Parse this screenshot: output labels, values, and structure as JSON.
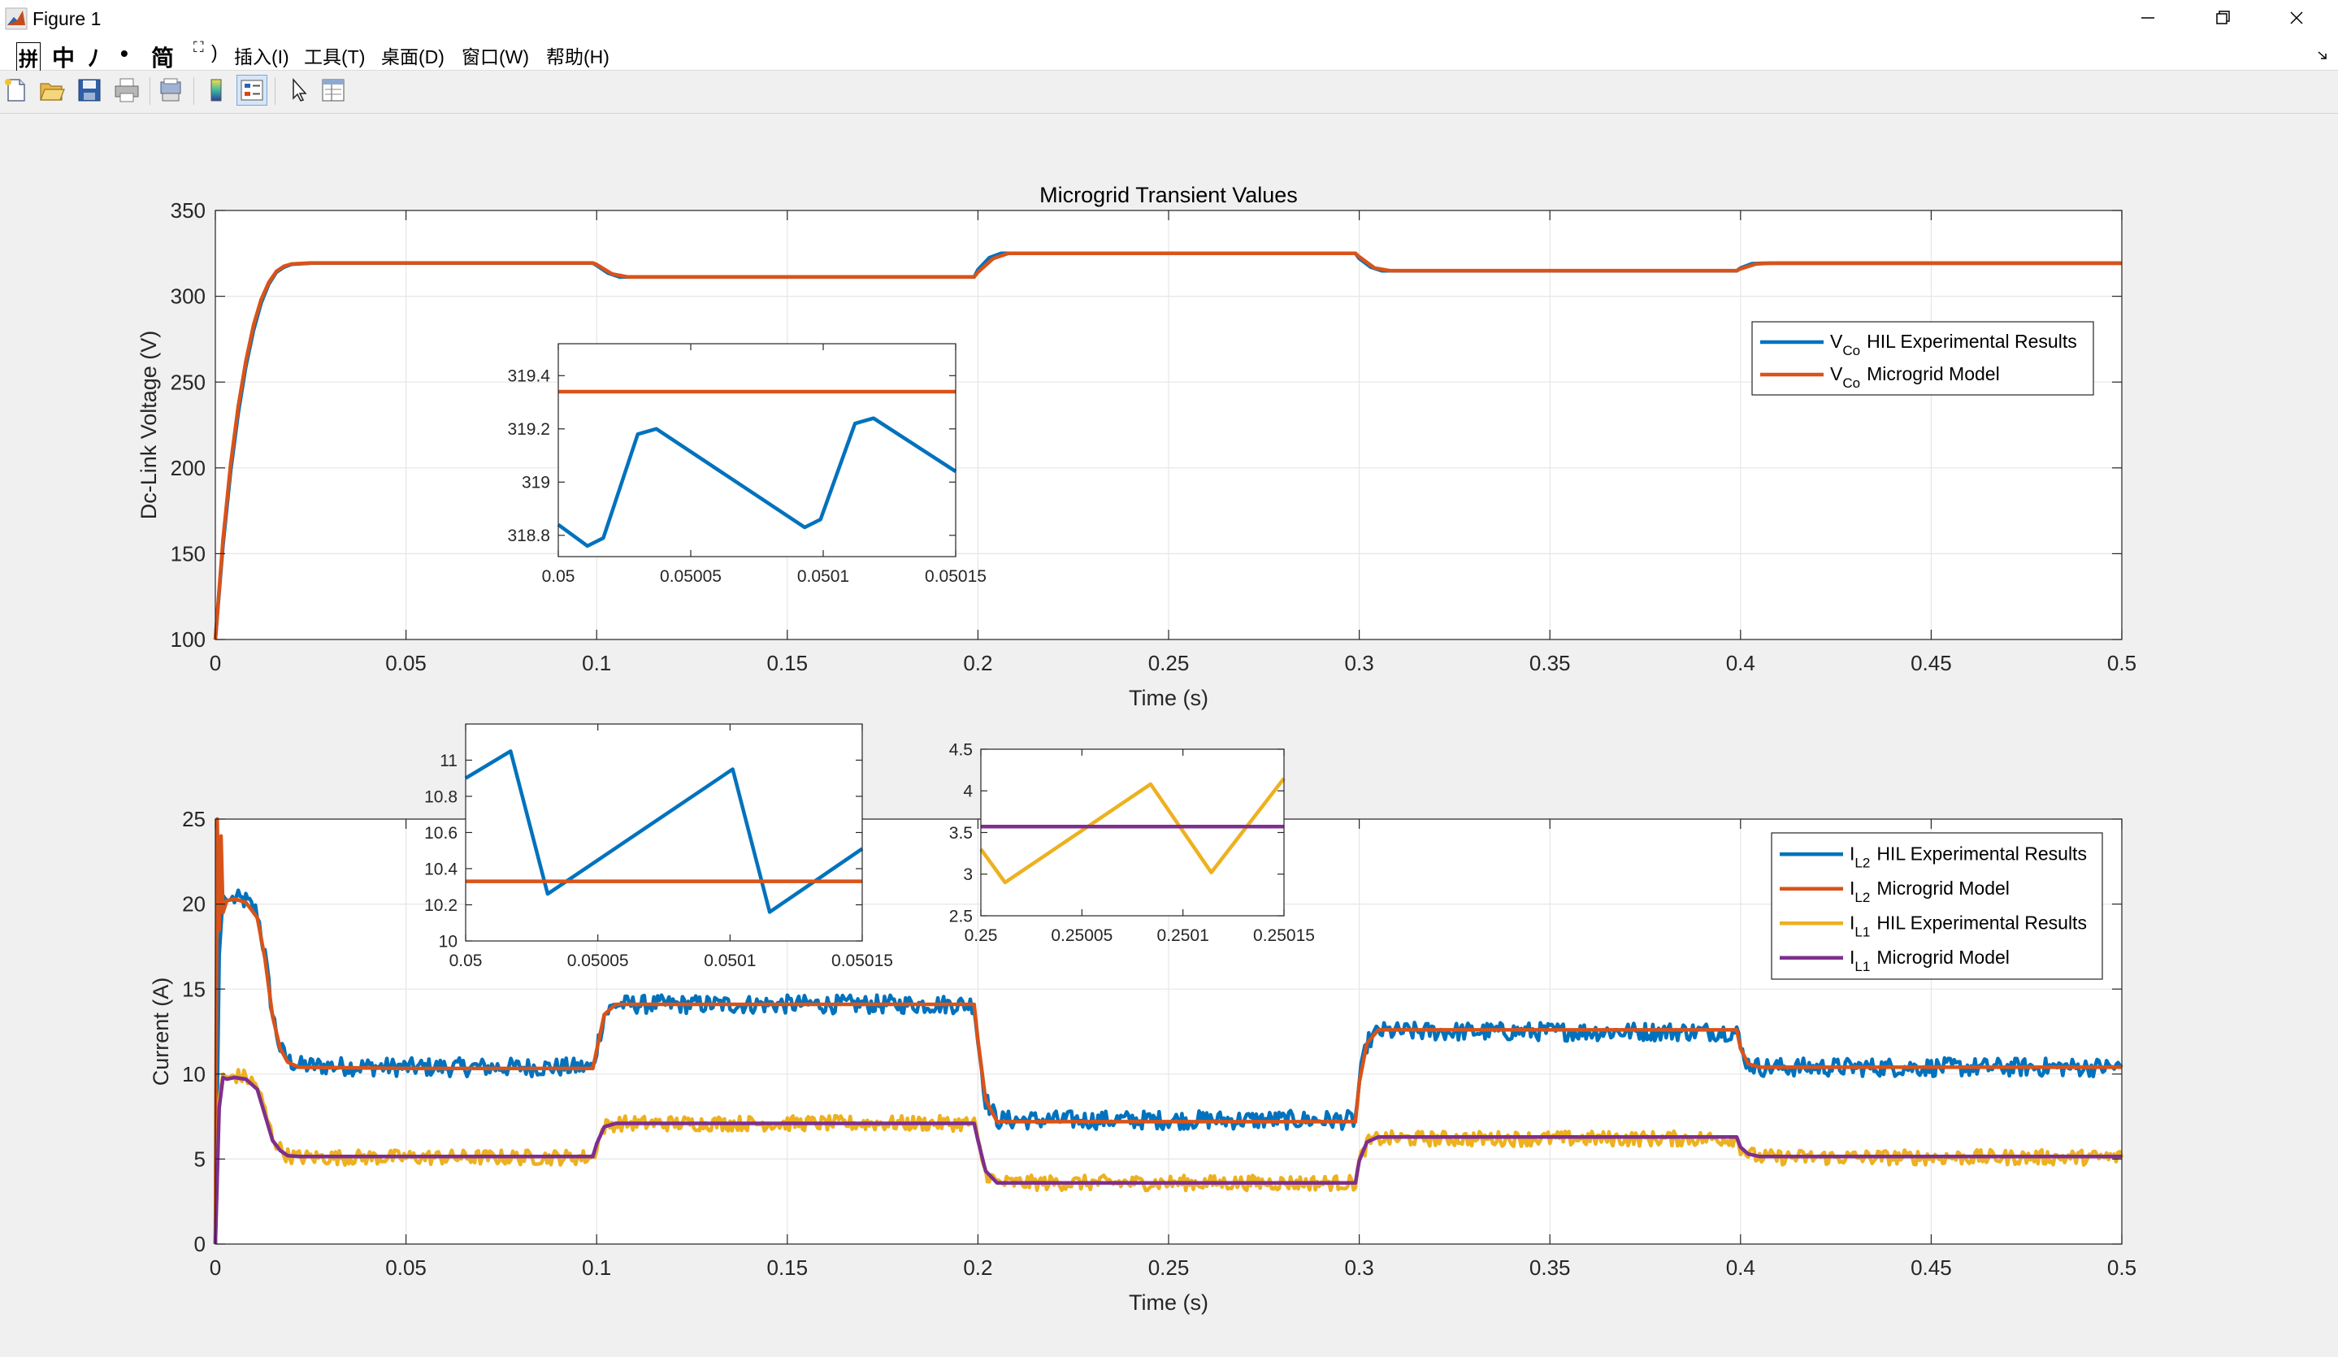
{
  "window": {
    "title": "Figure 1",
    "minimize_icon": "minimize-icon",
    "restore_icon": "restore-icon",
    "close_icon": "close-icon"
  },
  "menu": {
    "ime_glyphs": [
      "拼",
      "中",
      "ﾉ",
      "•",
      "简"
    ],
    "partial": ")",
    "items": [
      "插入(I)",
      "工具(T)",
      "桌面(D)",
      "窗口(W)",
      "帮助(H)"
    ]
  },
  "toolbar": {
    "icons": [
      "new-figure-icon",
      "open-file-icon",
      "save-icon",
      "print-icon",
      "print-preview-icon",
      "colorbar-icon",
      "legend-icon",
      "pointer-icon",
      "property-inspector-icon"
    ]
  },
  "figure": {
    "background": "#f0f0f0",
    "colors": {
      "blue": "#0072BD",
      "orange": "#D95319",
      "yellow": "#EDB120",
      "purple": "#7E2F8E"
    }
  },
  "chart_data": [
    {
      "id": "voltage",
      "type": "line",
      "title": "Microgrid Transient Values",
      "xlabel": "Time (s)",
      "ylabel": "Dc-Link Voltage (V)",
      "xlim": [
        0,
        0.5
      ],
      "ylim": [
        100,
        350
      ],
      "xticks": [
        "0",
        "0.05",
        "0.1",
        "0.15",
        "0.2",
        "0.25",
        "0.3",
        "0.35",
        "0.4",
        "0.45",
        "0.5"
      ],
      "yticks": [
        "100",
        "150",
        "200",
        "250",
        "300",
        "350"
      ],
      "grid": true,
      "legend_position": "top-right",
      "legend": [
        {
          "symbol": "V",
          "sub": "Co",
          "text": "HIL Experimental Results"
        },
        {
          "symbol": "V",
          "sub": "Co",
          "text": "Microgrid Model"
        }
      ],
      "series": [
        {
          "name": "VCo HIL Experimental Results",
          "color": "#0072BD",
          "x": [
            0,
            0.002,
            0.004,
            0.006,
            0.008,
            0.01,
            0.012,
            0.014,
            0.016,
            0.018,
            0.02,
            0.025,
            0.05,
            0.099,
            0.1,
            0.103,
            0.106,
            0.15,
            0.199,
            0.2,
            0.203,
            0.206,
            0.25,
            0.299,
            0.3,
            0.303,
            0.306,
            0.35,
            0.399,
            0.4,
            0.403,
            0.406,
            0.45,
            0.5
          ],
          "y": [
            100,
            155,
            198,
            232,
            259,
            280,
            296,
            307,
            314,
            317,
            318.6,
            319.3,
            319.3,
            319.3,
            318,
            313.5,
            311.2,
            311.2,
            311.2,
            315.5,
            322.5,
            325,
            325,
            325,
            322,
            317,
            314.8,
            314.8,
            314.8,
            316.5,
            319,
            319.2,
            319.2,
            319.2
          ]
        },
        {
          "name": "VCo Microgrid Model",
          "color": "#D95319",
          "x": [
            0,
            0.002,
            0.004,
            0.006,
            0.008,
            0.01,
            0.012,
            0.014,
            0.016,
            0.018,
            0.02,
            0.025,
            0.05,
            0.099,
            0.1,
            0.104,
            0.108,
            0.15,
            0.199,
            0.2,
            0.204,
            0.208,
            0.25,
            0.299,
            0.3,
            0.304,
            0.308,
            0.35,
            0.399,
            0.4,
            0.404,
            0.408,
            0.45,
            0.5
          ],
          "y": [
            100,
            158,
            202,
            236,
            262,
            283,
            298,
            308,
            314.5,
            317.5,
            318.8,
            319.4,
            319.4,
            319.4,
            318.5,
            313,
            311.3,
            311.3,
            311.3,
            314,
            322,
            325,
            325,
            325,
            323,
            316.5,
            314.9,
            314.9,
            314.9,
            316,
            318.8,
            319.3,
            319.3,
            319.3
          ]
        }
      ],
      "inset": {
        "xlim": [
          0.05,
          0.05015
        ],
        "ylim": [
          318.72,
          319.52
        ],
        "xticks": [
          "0.05",
          "0.05005",
          "0.0501",
          "0.05015"
        ],
        "yticks": [
          "318.8",
          "319",
          "319.2",
          "319.4"
        ],
        "series": [
          {
            "name": "HIL",
            "color": "#0072BD",
            "x": [
              0.05,
              0.050011,
              0.050017,
              0.05003,
              0.050037,
              0.050093,
              0.050099,
              0.050112,
              0.050119,
              0.05015
            ],
            "y": [
              318.84,
              318.76,
              318.79,
              319.18,
              319.2,
              318.83,
              318.86,
              319.22,
              319.24,
              319.04
            ]
          },
          {
            "name": "Model",
            "color": "#D95319",
            "x": [
              0.05,
              0.05015
            ],
            "y": [
              319.34,
              319.34
            ]
          }
        ]
      }
    },
    {
      "id": "current",
      "type": "line",
      "xlabel": "Time (s)",
      "ylabel": "Current (A)",
      "xlim": [
        0,
        0.5
      ],
      "ylim": [
        0,
        25
      ],
      "xticks": [
        "0",
        "0.05",
        "0.1",
        "0.15",
        "0.2",
        "0.25",
        "0.3",
        "0.35",
        "0.4",
        "0.45",
        "0.5"
      ],
      "yticks": [
        "0",
        "5",
        "10",
        "15",
        "20",
        "25"
      ],
      "grid": true,
      "legend_position": "top-right",
      "legend": [
        {
          "symbol": "I",
          "sub": "L2",
          "text": "HIL Experimental Results"
        },
        {
          "symbol": "I",
          "sub": "L2",
          "text": "Microgrid Model"
        },
        {
          "symbol": "I",
          "sub": "L1",
          "text": "HIL Experimental Results"
        },
        {
          "symbol": "I",
          "sub": "L1",
          "text": "Microgrid Model"
        }
      ],
      "series": [
        {
          "name": "IL2 HIL Experimental Results",
          "color": "#0072BD",
          "noise": 0.55,
          "x": [
            0,
            0.001,
            0.002,
            0.003,
            0.005,
            0.008,
            0.011,
            0.013,
            0.015,
            0.017,
            0.019,
            0.022,
            0.05,
            0.099,
            0.1,
            0.102,
            0.105,
            0.15,
            0.199,
            0.2,
            0.202,
            0.205,
            0.25,
            0.299,
            0.3,
            0.302,
            0.305,
            0.35,
            0.399,
            0.4,
            0.402,
            0.405,
            0.45,
            0.5
          ],
          "y": [
            0,
            17,
            20.5,
            20.2,
            20.3,
            20.2,
            19.5,
            17,
            13.5,
            11.5,
            10.8,
            10.5,
            10.4,
            10.4,
            11.5,
            13.5,
            14.1,
            14.1,
            14.1,
            12,
            8.5,
            7.3,
            7.3,
            7.3,
            9.5,
            11.8,
            12.5,
            12.5,
            12.5,
            11.5,
            10.6,
            10.4,
            10.4,
            10.4
          ]
        },
        {
          "name": "IL2 Microgrid Model",
          "color": "#D95319",
          "noise": 0,
          "x": [
            0,
            0.0005,
            0.001,
            0.0015,
            0.002,
            0.003,
            0.005,
            0.008,
            0.011,
            0.013,
            0.015,
            0.017,
            0.019,
            0.022,
            0.05,
            0.099,
            0.1,
            0.102,
            0.105,
            0.15,
            0.199,
            0.2,
            0.202,
            0.205,
            0.25,
            0.299,
            0.3,
            0.302,
            0.305,
            0.35,
            0.399,
            0.4,
            0.402,
            0.405,
            0.45,
            0.5
          ],
          "y": [
            0,
            25,
            18.5,
            24,
            19.5,
            20.2,
            20.3,
            20.1,
            19.2,
            16.8,
            13.4,
            11.5,
            10.7,
            10.4,
            10.33,
            10.33,
            11.4,
            13.5,
            14.1,
            14.1,
            14.1,
            12,
            8.5,
            7.2,
            7.2,
            7.2,
            9.5,
            11.8,
            12.6,
            12.6,
            12.6,
            11.5,
            10.6,
            10.4,
            10.4,
            10.4
          ]
        },
        {
          "name": "IL1 HIL Experimental Results",
          "color": "#EDB120",
          "noise": 0.45,
          "x": [
            0,
            0.001,
            0.002,
            0.003,
            0.005,
            0.008,
            0.011,
            0.013,
            0.015,
            0.017,
            0.019,
            0.022,
            0.05,
            0.099,
            0.1,
            0.102,
            0.105,
            0.15,
            0.199,
            0.2,
            0.202,
            0.205,
            0.25,
            0.299,
            0.3,
            0.302,
            0.305,
            0.35,
            0.399,
            0.4,
            0.402,
            0.405,
            0.45,
            0.5
          ],
          "y": [
            0,
            8.5,
            10,
            9.8,
            9.9,
            9.8,
            9.3,
            7.8,
            6.3,
            5.6,
            5.2,
            5.1,
            5.1,
            5.1,
            5.8,
            6.9,
            7.1,
            7.1,
            7.1,
            6,
            4.2,
            3.6,
            3.6,
            3.6,
            4.8,
            5.9,
            6.2,
            6.2,
            6.2,
            5.7,
            5.3,
            5.1,
            5.1,
            5.1
          ]
        },
        {
          "name": "IL1 Microgrid Model",
          "color": "#7E2F8E",
          "noise": 0,
          "x": [
            0,
            0.001,
            0.002,
            0.003,
            0.005,
            0.008,
            0.011,
            0.013,
            0.015,
            0.017,
            0.019,
            0.022,
            0.05,
            0.099,
            0.1,
            0.102,
            0.105,
            0.15,
            0.199,
            0.2,
            0.202,
            0.205,
            0.25,
            0.299,
            0.3,
            0.302,
            0.305,
            0.35,
            0.399,
            0.4,
            0.402,
            0.405,
            0.45,
            0.5
          ],
          "y": [
            0,
            8,
            9.8,
            9.7,
            9.8,
            9.7,
            9.1,
            7.6,
            6.1,
            5.5,
            5.2,
            5.15,
            5.15,
            5.15,
            5.9,
            6.9,
            7.1,
            7.1,
            7.1,
            6.1,
            4.3,
            3.6,
            3.6,
            3.6,
            4.9,
            6,
            6.3,
            6.3,
            6.3,
            5.7,
            5.3,
            5.15,
            5.15,
            5.15
          ]
        }
      ],
      "insets": [
        {
          "xlim": [
            0.05,
            0.05015
          ],
          "ylim": [
            10,
            11.2
          ],
          "xticks": [
            "0.05",
            "0.05005",
            "0.0501",
            "0.05015"
          ],
          "yticks": [
            "10",
            "10.2",
            "10.4",
            "10.6",
            "10.8",
            "11"
          ],
          "series": [
            {
              "name": "HIL",
              "color": "#0072BD",
              "x": [
                0.05,
                0.050017,
                0.050031,
                0.050101,
                0.050115,
                0.05015
              ],
              "y": [
                10.9,
                11.05,
                10.26,
                10.95,
                10.16,
                10.51
              ]
            },
            {
              "name": "Model",
              "color": "#D95319",
              "x": [
                0.05,
                0.05015
              ],
              "y": [
                10.33,
                10.33
              ]
            }
          ]
        },
        {
          "xlim": [
            0.25,
            0.25015
          ],
          "ylim": [
            2.5,
            4.5
          ],
          "xticks": [
            "0.25",
            "0.25005",
            "0.2501",
            "0.25015"
          ],
          "yticks": [
            "2.5",
            "3",
            "3.5",
            "4",
            "4.5"
          ],
          "series": [
            {
              "name": "HIL",
              "color": "#EDB120",
              "x": [
                0.25,
                0.250012,
                0.250084,
                0.250114,
                0.25015
              ],
              "y": [
                3.3,
                2.9,
                4.08,
                3.02,
                4.15
              ]
            },
            {
              "name": "Model",
              "color": "#7E2F8E",
              "x": [
                0.25,
                0.25015
              ],
              "y": [
                3.57,
                3.57
              ]
            }
          ]
        }
      ]
    }
  ]
}
